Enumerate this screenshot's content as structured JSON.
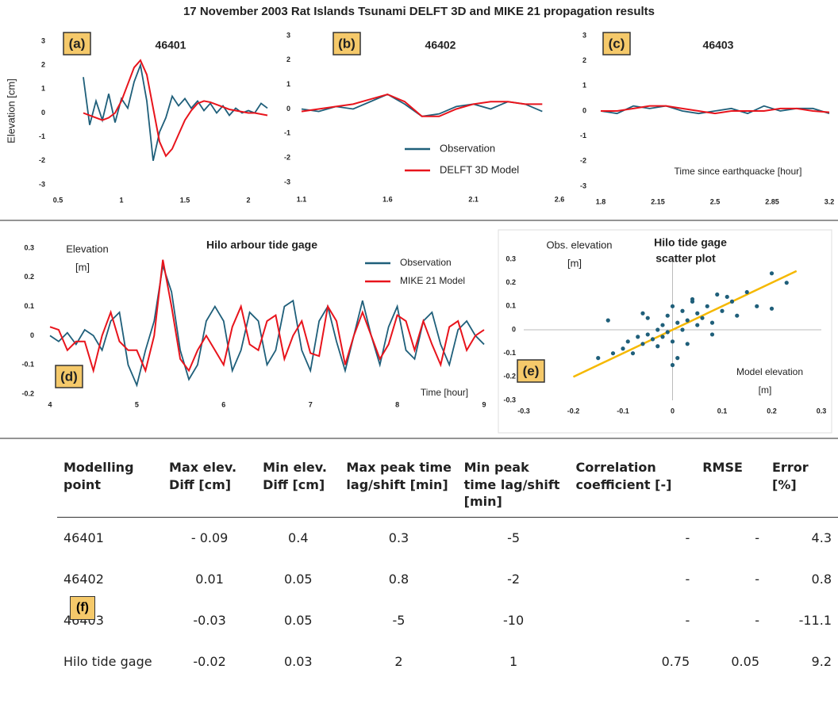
{
  "title": "17 November 2003 Rat Islands Tsunami DELFT 3D and MIKE 21 propagation results",
  "chart_data": [
    {
      "type": "line",
      "panel": "(a)",
      "title": "46401",
      "y_label": "Elevation [cm]",
      "x": [
        0.7,
        0.75,
        0.8,
        0.85,
        0.9,
        0.95,
        1.0,
        1.05,
        1.1,
        1.15,
        1.2,
        1.25,
        1.3,
        1.35,
        1.4,
        1.45,
        1.5,
        1.55,
        1.6,
        1.65,
        1.7,
        1.75,
        1.8,
        1.85,
        1.9,
        1.95,
        2.0,
        2.05,
        2.1,
        2.15
      ],
      "series": [
        {
          "color": "#1f5f7a",
          "values": [
            1.5,
            -0.5,
            0.5,
            -0.3,
            0.8,
            -0.4,
            0.6,
            0.2,
            1.3,
            2.0,
            0.5,
            -2.0,
            -0.8,
            -0.2,
            0.7,
            0.3,
            0.6,
            0.2,
            0.5,
            0.1,
            0.4,
            0.0,
            0.3,
            -0.1,
            0.2,
            0.0,
            0.1,
            0.0,
            0.4,
            0.2
          ]
        },
        {
          "color": "#e8141c",
          "values": [
            0,
            -0.1,
            -0.2,
            -0.3,
            -0.2,
            0.0,
            0.5,
            1.2,
            1.9,
            2.2,
            1.6,
            0.2,
            -1.2,
            -1.8,
            -1.5,
            -0.9,
            -0.3,
            0.1,
            0.4,
            0.5,
            0.45,
            0.35,
            0.25,
            0.15,
            0.1,
            0.05,
            0.0,
            0.0,
            -0.05,
            -0.1
          ]
        }
      ],
      "xlim": [
        0.5,
        2.2
      ],
      "xticks": [
        0.5,
        1,
        1.5,
        2
      ],
      "ylim": [
        -3,
        3
      ],
      "yticks": [
        -3,
        -2,
        -1,
        0,
        1,
        2,
        3
      ]
    },
    {
      "type": "line",
      "panel": "(b)",
      "title": "46402",
      "x": [
        1.1,
        1.2,
        1.3,
        1.4,
        1.5,
        1.6,
        1.7,
        1.8,
        1.9,
        2.0,
        2.1,
        2.2,
        2.3,
        2.4,
        2.5
      ],
      "series": [
        {
          "name": "Observation",
          "color": "#1f5f7a",
          "values": [
            0,
            -0.1,
            0.1,
            0.0,
            0.3,
            0.6,
            0.2,
            -0.3,
            -0.2,
            0.1,
            0.2,
            0.0,
            0.3,
            0.2,
            -0.1
          ]
        },
        {
          "name": "DELFT 3D Model",
          "color": "#e8141c",
          "values": [
            -0.1,
            0.0,
            0.1,
            0.2,
            0.4,
            0.6,
            0.3,
            -0.3,
            -0.3,
            0.0,
            0.2,
            0.3,
            0.3,
            0.2,
            0.2
          ]
        }
      ],
      "xlim": [
        1.1,
        2.6
      ],
      "xticks": [
        1.1,
        1.6,
        2.1,
        2.6
      ],
      "ylim": [
        -3,
        3
      ],
      "yticks": [
        -3,
        -2,
        -1,
        0,
        1,
        2,
        3
      ],
      "legend": "lower-center"
    },
    {
      "type": "line",
      "panel": "(c)",
      "title": "46403",
      "x_label": "Time since earthquacke [hour]",
      "x": [
        1.8,
        1.9,
        2.0,
        2.1,
        2.2,
        2.3,
        2.4,
        2.5,
        2.6,
        2.7,
        2.8,
        2.9,
        3.0,
        3.1,
        3.2
      ],
      "series": [
        {
          "color": "#1f5f7a",
          "values": [
            0,
            -0.1,
            0.2,
            0.1,
            0.2,
            0.0,
            -0.1,
            0.0,
            0.1,
            -0.1,
            0.2,
            0.0,
            0.1,
            0.1,
            -0.1
          ]
        },
        {
          "color": "#e8141c",
          "values": [
            0,
            0.0,
            0.1,
            0.2,
            0.2,
            0.1,
            0.0,
            -0.1,
            0.0,
            0.0,
            0.0,
            0.1,
            0.1,
            0.0,
            -0.05
          ]
        }
      ],
      "xlim": [
        1.8,
        3.2
      ],
      "xticks": [
        1.8,
        2.15,
        2.5,
        2.85,
        3.2
      ],
      "ylim": [
        -3,
        3
      ],
      "yticks": [
        -3,
        -2,
        -1,
        0,
        1,
        2,
        3
      ]
    },
    {
      "type": "line",
      "panel": "(d)",
      "title": "Hilo arbour tide gage",
      "y_label": [
        "Elevation",
        "[m]"
      ],
      "x_label": "Time [hour]",
      "x": [
        4.0,
        4.1,
        4.2,
        4.3,
        4.4,
        4.5,
        4.6,
        4.7,
        4.8,
        4.9,
        5.0,
        5.1,
        5.2,
        5.3,
        5.4,
        5.5,
        5.6,
        5.7,
        5.8,
        5.9,
        6.0,
        6.1,
        6.2,
        6.3,
        6.4,
        6.5,
        6.6,
        6.7,
        6.8,
        6.9,
        7.0,
        7.1,
        7.2,
        7.3,
        7.4,
        7.5,
        7.6,
        7.7,
        7.8,
        7.9,
        8.0,
        8.1,
        8.2,
        8.3,
        8.4,
        8.5,
        8.6,
        8.7,
        8.8,
        8.9,
        9.0
      ],
      "series": [
        {
          "name": "Observation",
          "color": "#1f5f7a",
          "values": [
            0.0,
            -0.02,
            0.01,
            -0.03,
            0.02,
            0.0,
            -0.05,
            0.05,
            0.08,
            -0.1,
            -0.17,
            -0.05,
            0.05,
            0.24,
            0.15,
            -0.05,
            -0.15,
            -0.1,
            0.05,
            0.1,
            0.05,
            -0.12,
            -0.05,
            0.08,
            0.05,
            -0.1,
            -0.05,
            0.1,
            0.12,
            -0.05,
            -0.12,
            0.05,
            0.1,
            -0.02,
            -0.12,
            0.0,
            0.12,
            0.0,
            -0.1,
            0.03,
            0.1,
            -0.05,
            -0.08,
            0.05,
            0.08,
            -0.03,
            -0.1,
            0.02,
            0.05,
            0.0,
            -0.03
          ]
        },
        {
          "name": "MIKE 21 Model",
          "color": "#e8141c",
          "values": [
            0.03,
            0.02,
            -0.05,
            -0.02,
            -0.02,
            -0.12,
            0.0,
            0.08,
            -0.02,
            -0.05,
            -0.05,
            -0.12,
            0.0,
            0.26,
            0.1,
            -0.08,
            -0.12,
            -0.05,
            0.0,
            -0.05,
            -0.1,
            0.03,
            0.1,
            -0.03,
            -0.05,
            0.05,
            0.07,
            -0.08,
            0.0,
            0.05,
            -0.06,
            -0.07,
            0.1,
            0.05,
            -0.1,
            0.0,
            0.08,
            0.0,
            -0.08,
            -0.03,
            0.07,
            0.05,
            -0.05,
            0.05,
            -0.03,
            -0.1,
            0.03,
            0.05,
            -0.05,
            0.0,
            0.02
          ]
        }
      ],
      "xlim": [
        4,
        9
      ],
      "xticks": [
        4,
        5,
        6,
        7,
        8,
        9
      ],
      "ylim": [
        -0.2,
        0.3
      ],
      "yticks": [
        -0.2,
        -0.1,
        0,
        0.1,
        0.2,
        0.3
      ],
      "legend": "upper-right"
    },
    {
      "type": "scatter",
      "panel": "(e)",
      "title": [
        "Hilo tide gage",
        "scatter plot"
      ],
      "y_label": [
        "Obs. elevation",
        "[m]"
      ],
      "x_label": [
        "Model elevation",
        "[m]"
      ],
      "x": [
        -0.15,
        -0.12,
        -0.1,
        -0.09,
        -0.08,
        -0.07,
        -0.06,
        -0.05,
        -0.05,
        -0.04,
        -0.03,
        -0.03,
        -0.02,
        -0.02,
        -0.01,
        -0.01,
        0,
        0,
        0.01,
        0.01,
        0.02,
        0.02,
        0.03,
        0.03,
        0.04,
        0.05,
        0.05,
        0.06,
        0.07,
        0.08,
        0.09,
        0.1,
        0.12,
        0.13,
        0.15,
        0.17,
        0.2,
        0.23,
        -0.13,
        0.0,
        0.04,
        -0.06,
        0.08,
        0.11,
        0.2
      ],
      "y": [
        -0.12,
        -0.1,
        -0.08,
        -0.05,
        -0.1,
        -0.03,
        -0.06,
        -0.02,
        0.05,
        -0.04,
        0.0,
        -0.07,
        0.02,
        -0.03,
        0.06,
        -0.01,
        0.1,
        -0.05,
        0.03,
        -0.12,
        0.08,
        0.0,
        0.04,
        -0.06,
        0.12,
        0.02,
        0.07,
        0.05,
        0.1,
        0.03,
        0.15,
        0.08,
        0.12,
        0.06,
        0.16,
        0.1,
        0.24,
        0.2,
        0.04,
        -0.15,
        0.13,
        0.07,
        -0.02,
        0.14,
        0.09
      ],
      "color": "#1f5f7a",
      "fit": {
        "x": [
          -0.2,
          0.25
        ],
        "y": [
          -0.2,
          0.25
        ],
        "color": "#f5b800"
      },
      "xlim": [
        -0.3,
        0.3
      ],
      "xticks": [
        -0.3,
        -0.2,
        -0.1,
        0,
        0.1,
        0.2,
        0.3
      ],
      "ylim": [
        -0.3,
        0.3
      ],
      "yticks": [
        -0.3,
        -0.2,
        -0.1,
        0,
        0.1,
        0.2,
        0.3
      ]
    }
  ],
  "table": {
    "label": "(f)",
    "columns": [
      "Modelling point",
      "Max elev. Diff [cm]",
      "Min elev. Diff [cm]",
      "Max peak time lag/shift [min]",
      "Min peak time lag/shift [min]",
      "Correlation coefficient [-]",
      "RMSE",
      "Error [%]"
    ],
    "rows": [
      [
        "46401",
        "- 0.09",
        "0.4",
        "0.3",
        "-5",
        "-",
        "-",
        "4.3"
      ],
      [
        "46402",
        "0.01",
        "0.05",
        "0.8",
        "-2",
        "-",
        "-",
        "0.8"
      ],
      [
        "46403",
        "-0.03",
        "0.05",
        "-5",
        "-10",
        "-",
        "-",
        "-11.1"
      ],
      [
        "Hilo tide gage",
        "-0.02",
        "0.03",
        "2",
        "1",
        "0.75",
        "0.05",
        "9.2"
      ]
    ]
  }
}
